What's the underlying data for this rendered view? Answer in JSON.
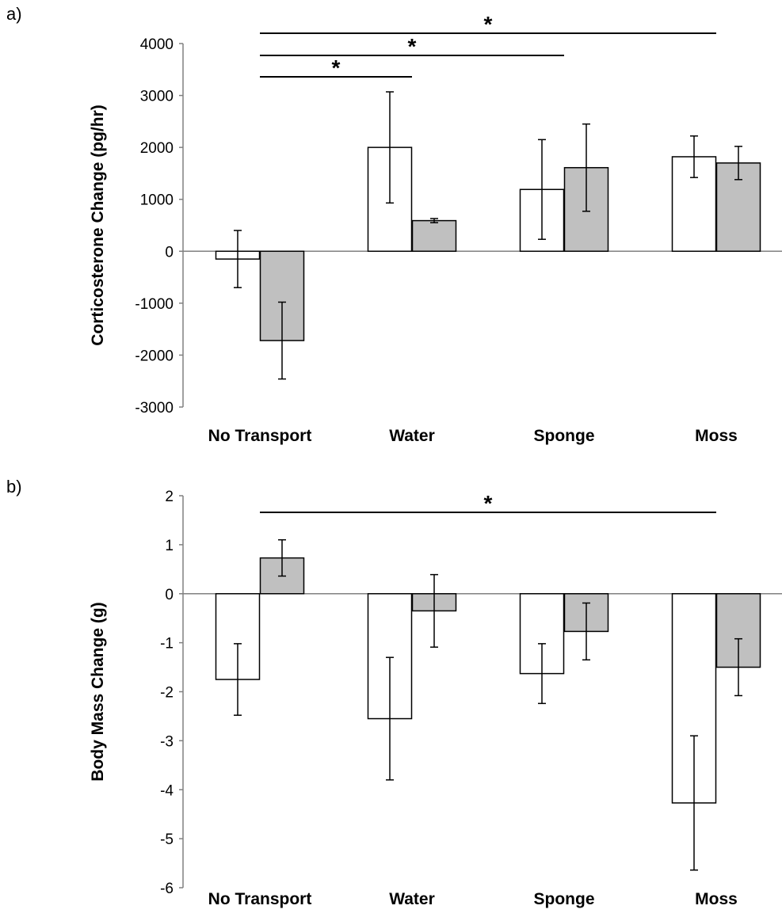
{
  "chart_data": [
    {
      "type": "bar",
      "panel_label": "a)",
      "categories": [
        "No Transport",
        "Water",
        "Sponge",
        "Moss"
      ],
      "ylabel": "Corticosterone Change (pg/hr)",
      "xlabel": "",
      "ylim": [
        -3000,
        4000
      ],
      "yticks": [
        4000,
        3000,
        2000,
        1000,
        0,
        -1000,
        -2000,
        -3000
      ],
      "grid": false,
      "series": [
        {
          "values": [
            -150,
            2000,
            1190,
            1820
          ],
          "errors": [
            550,
            1070,
            960,
            400
          ],
          "fill": "#ffffff"
        },
        {
          "values": [
            -1720,
            590,
            1610,
            1700
          ],
          "errors": [
            740,
            40,
            840,
            320
          ],
          "fill": "#c0c0c0"
        }
      ],
      "significance": [
        {
          "from": "No Transport",
          "to": "Moss",
          "label": "*"
        },
        {
          "from": "No Transport",
          "to": "Sponge",
          "label": "*"
        },
        {
          "from": "No Transport",
          "to": "Water",
          "label": "*"
        }
      ]
    },
    {
      "type": "bar",
      "panel_label": "b)",
      "categories": [
        "No Transport",
        "Water",
        "Sponge",
        "Moss"
      ],
      "ylabel": "Body Mass Change (g)",
      "xlabel": "",
      "ylim": [
        -6,
        2
      ],
      "yticks": [
        2,
        1,
        0,
        -1,
        -2,
        -3,
        -4,
        -5,
        -6
      ],
      "grid": false,
      "series": [
        {
          "values": [
            -1.75,
            -2.55,
            -1.63,
            -4.27
          ],
          "errors": [
            0.73,
            1.25,
            0.61,
            1.37
          ],
          "fill": "#ffffff"
        },
        {
          "values": [
            0.73,
            -0.35,
            -0.77,
            -1.5
          ],
          "errors": [
            0.37,
            0.74,
            0.58,
            0.58
          ],
          "fill": "#c0c0c0"
        }
      ],
      "significance": [
        {
          "from": "No Transport",
          "to": "Moss",
          "label": "*"
        }
      ]
    }
  ],
  "colors": {
    "axis": "#808080",
    "bar_outline": "#000000",
    "text": "#000000"
  }
}
